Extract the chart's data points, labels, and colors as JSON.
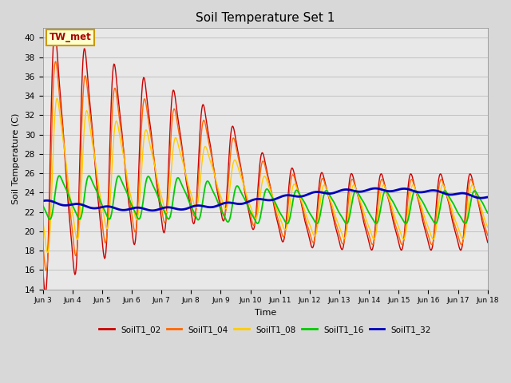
{
  "title": "Soil Temperature Set 1",
  "xlabel": "Time",
  "ylabel": "Soil Temperature (C)",
  "ylim": [
    14,
    41
  ],
  "yticks": [
    14,
    16,
    18,
    20,
    22,
    24,
    26,
    28,
    30,
    32,
    34,
    36,
    38,
    40
  ],
  "plot_bg_color": "#e8e8e8",
  "fig_bg_color": "#d8d8d8",
  "annotation_text": "TW_met",
  "annotation_bg": "#ffffcc",
  "annotation_border": "#cc9900",
  "series_order": [
    "SoilT1_02",
    "SoilT1_04",
    "SoilT1_08",
    "SoilT1_16",
    "SoilT1_32"
  ],
  "series": {
    "SoilT1_02": {
      "color": "#cc0000",
      "linewidth": 1.0
    },
    "SoilT1_04": {
      "color": "#ff6600",
      "linewidth": 1.0
    },
    "SoilT1_08": {
      "color": "#ffcc00",
      "linewidth": 1.0
    },
    "SoilT1_16": {
      "color": "#00cc00",
      "linewidth": 1.3
    },
    "SoilT1_32": {
      "color": "#0000bb",
      "linewidth": 2.0
    }
  },
  "xtick_labels": [
    "Jun 3",
    "Jun 4",
    "Jun 5",
    "Jun 6",
    "Jun 7",
    "Jun 8",
    "Jun 9",
    "Jun 10",
    "Jun 11",
    "Jun 12",
    "Jun 13",
    "Jun 14",
    "Jun 15",
    "Jun 16",
    "Jun 17",
    "Jun 18"
  ],
  "legend_labels": [
    "SoilT1_02",
    "SoilT1_04",
    "SoilT1_08",
    "SoilT1_16",
    "SoilT1_32"
  ],
  "legend_colors": [
    "#cc0000",
    "#ff6600",
    "#ffcc00",
    "#00cc00",
    "#0000bb"
  ]
}
